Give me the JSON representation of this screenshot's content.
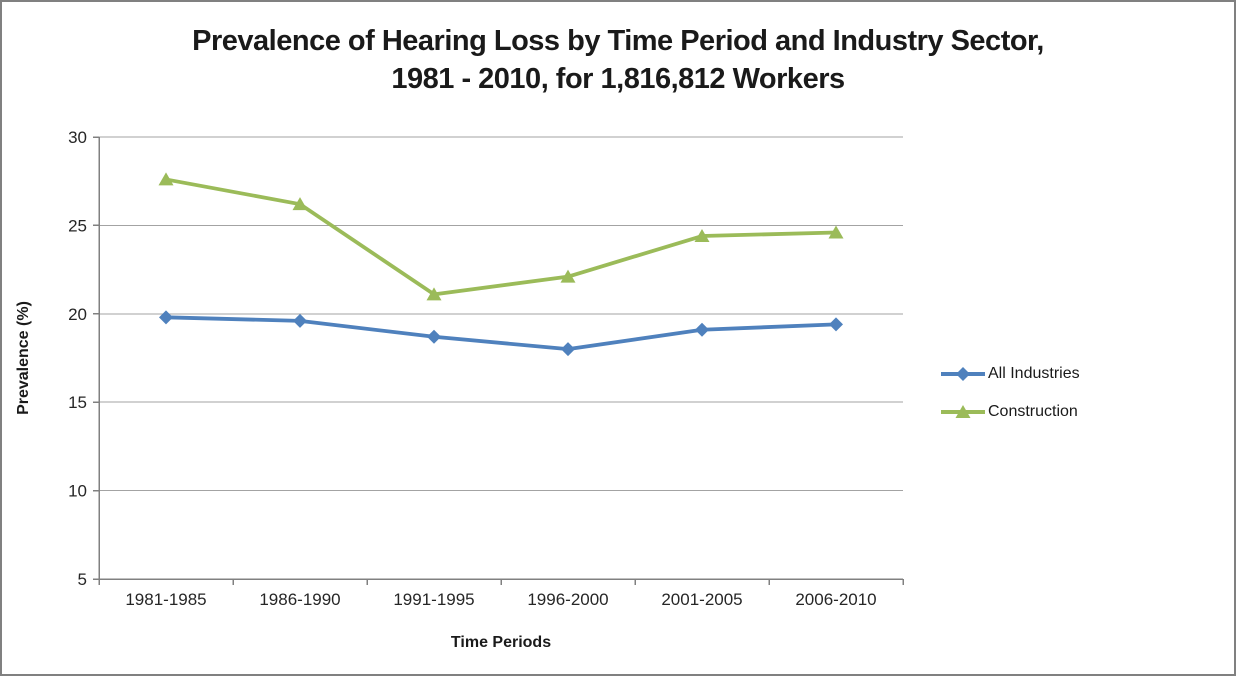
{
  "title": {
    "line1": "Prevalence of Hearing Loss by Time Period and Industry Sector,",
    "line2": "1981 - 2010, for 1,816,812 Workers"
  },
  "chart_data": {
    "type": "line",
    "categories": [
      "1981-1985",
      "1986-1990",
      "1991-1995",
      "1996-2000",
      "2001-2005",
      "2006-2010"
    ],
    "series": [
      {
        "name": "All Industries",
        "color": "#4F81BD",
        "marker": "diamond",
        "values": [
          19.8,
          19.6,
          18.7,
          18.0,
          19.1,
          19.4
        ]
      },
      {
        "name": "Construction",
        "color": "#9BBB59",
        "marker": "triangle",
        "values": [
          27.6,
          26.2,
          21.1,
          22.1,
          24.4,
          24.6
        ]
      }
    ],
    "xlabel": "Time Periods",
    "ylabel": "Prevalence (%)",
    "ylim": [
      5,
      30
    ],
    "yticks": [
      5,
      10,
      15,
      20,
      25,
      30
    ],
    "grid": true,
    "legend_position": "right"
  },
  "colors": {
    "gridline": "#A3A3A3",
    "axis": "#808080",
    "frame_border": "#808080",
    "tick_text": "#262626",
    "title_text": "#1a1a1a"
  }
}
